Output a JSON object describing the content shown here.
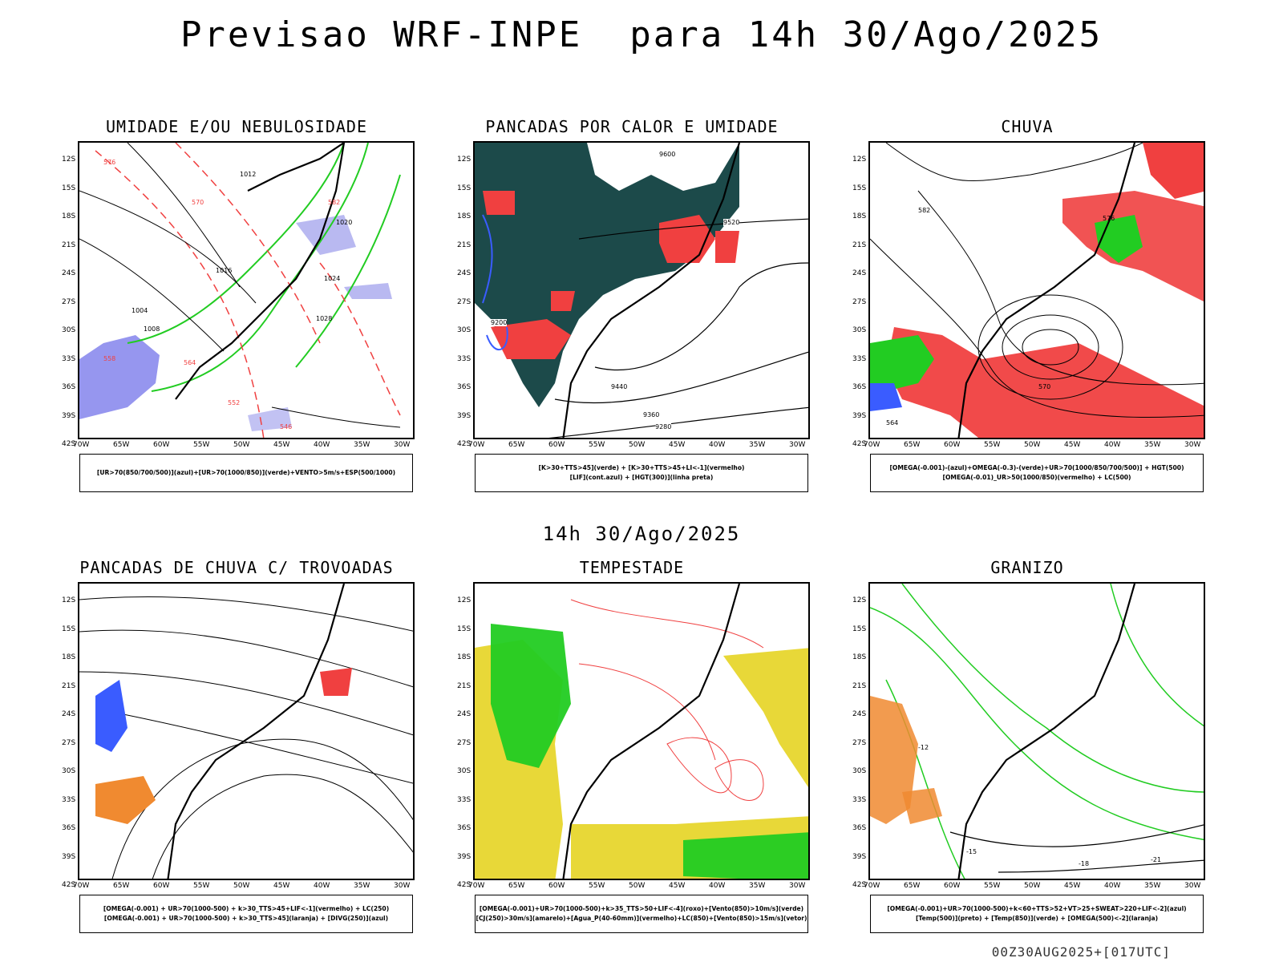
{
  "title": "Previsao WRF-INPE  para 14h 30/Ago/2025",
  "subtitle": "14h 30/Ago/2025",
  "footer": "00Z30AUG2025+[017UTC]",
  "lat_labels": [
    "12S",
    "15S",
    "18S",
    "21S",
    "24S",
    "27S",
    "30S",
    "33S",
    "36S",
    "39S",
    "42S"
  ],
  "lon_labels": [
    "70W",
    "65W",
    "60W",
    "55W",
    "50W",
    "45W",
    "40W",
    "35W",
    "30W"
  ],
  "colors": {
    "blue": "#3a5cff",
    "green": "#22cc22",
    "red": "#f04040",
    "darkteal": "#1c4a4a",
    "yellow": "#e8d838",
    "orange": "#f08a30",
    "lavender": "#a8a8ee"
  },
  "panels": [
    {
      "title": "UMIDADE E/OU NEBULOSIDADE",
      "legend": [
        "[UR>70(850/700/500)](azul)+[UR>70(1000/850)](verde)+VENTO>5m/s+ESP(500/1000)"
      ],
      "labels": [
        "1012",
        "1016",
        "1020",
        "1024",
        "1008",
        "1004",
        "1028",
        "570",
        "576",
        "582",
        "564",
        "558",
        "552",
        "546"
      ]
    },
    {
      "title": "PANCADAS POR CALOR E UMIDADE",
      "legend": [
        "[K>30+TTS>45](verde) + [K>30+TTS>45+LI<-1](vermelho)",
        "[LIF](cont.azul) + [HGT(300)](linha preta)"
      ],
      "labels": [
        "9600",
        "9520",
        "9440",
        "9360",
        "9280",
        "9200"
      ]
    },
    {
      "title": "CHUVA",
      "legend": [
        "[OMEGA(-0.001)-(azul)+OMEGA(-0.3)-(verde)+UR>70(1000/850/700/500)] + HGT(500)",
        "[OMEGA(-0.01)_UR>50(1000/850)(vermelho) + LC(500)"
      ],
      "labels": [
        "582",
        "576",
        "570",
        "564"
      ]
    },
    {
      "title": "PANCADAS DE CHUVA C/ TROVOADAS",
      "legend": [
        "[OMEGA(-0.001) + UR>70(1000-500) + k>30_TTS>45+LIF<-1](vermelho) + LC(250)",
        "[OMEGA(-0.001) + UR>70(1000-500) + k>30_TTS>45](laranja) + [DIVG(250)](azul)"
      ],
      "labels": []
    },
    {
      "title": "TEMPESTADE",
      "legend": [
        "[OMEGA(-0.001)+UR>70(1000-500)+k>35_TTS>50+LIF<-4](roxo)+[Vento(850)>10m/s](verde)",
        "[CJ(250)>30m/s](amarelo)+[Agua_P(40-60mm)](vermelho)+LC(850)+[Vento(850)>15m/s](vetor)"
      ],
      "labels": []
    },
    {
      "title": "GRANIZO",
      "legend": [
        "[OMEGA(-0.001)+UR>70(1000-500)+k<60+TTS>52+VT>25+SWEAT>220+LIF<-2](azul)",
        "[Temp(500)](preto) + [Temp(850)](verde) + [OMEGA(500)<-2](laranja)"
      ],
      "labels": [
        "-12",
        "-15",
        "-18",
        "-21"
      ]
    }
  ]
}
